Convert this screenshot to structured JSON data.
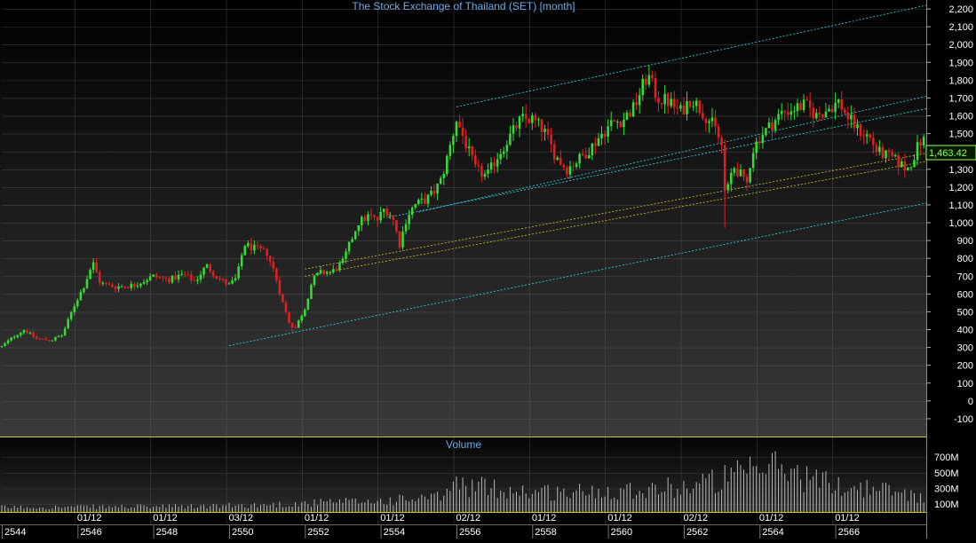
{
  "chart_data": {
    "type": "candlestick",
    "title": "The Stock Exchange of Thailand (SET) [month]",
    "last_price_label": "1,463.42",
    "colors": {
      "background_top": "#000000",
      "background_bottom": "#3a3a3a",
      "up": "#33dd33",
      "down": "#e02020",
      "channel_outer": "#30c8d8",
      "channel_inner": "#c8b020",
      "title": "#6fa8e8",
      "axis_text": "#ffffff",
      "price_tag": "#90ff60",
      "grid": "#6a6a6a",
      "volume_bars": "#b8b8b8"
    },
    "price_axis": {
      "ticks": [
        "2,200",
        "2,100",
        "2,000",
        "1,900",
        "1,800",
        "1,700",
        "1,600",
        "1,500",
        "1,400",
        "1,300",
        "1,200",
        "1,100",
        "1,000",
        "900",
        "800",
        "700",
        "600",
        "500",
        "400",
        "300",
        "200",
        "100",
        "0",
        "-100"
      ],
      "ylim": [
        -200,
        2250
      ]
    },
    "volume_panel": {
      "title": "Volume",
      "ticks": [
        "700M",
        "500M",
        "300M",
        "100M"
      ],
      "ylim": [
        0,
        860
      ]
    },
    "date_axis": {
      "upper_labels": [
        {
          "year": 2545.92,
          "text": "01/12"
        },
        {
          "year": 2547.92,
          "text": "01/12"
        },
        {
          "year": 2549.92,
          "text": "03/12"
        },
        {
          "year": 2551.92,
          "text": "01/12"
        },
        {
          "year": 2553.92,
          "text": "01/12"
        },
        {
          "year": 2555.92,
          "text": "02/12"
        },
        {
          "year": 2557.92,
          "text": "01/12"
        },
        {
          "year": 2559.92,
          "text": "01/12"
        },
        {
          "year": 2561.92,
          "text": "02/12"
        },
        {
          "year": 2563.92,
          "text": "01/12"
        },
        {
          "year": 2565.92,
          "text": "01/12"
        }
      ],
      "lower_labels": [
        "2544",
        "2546",
        "2548",
        "2550",
        "2552",
        "2554",
        "2556",
        "2558",
        "2560",
        "2562",
        "2564",
        "2566"
      ],
      "xlim": [
        2544.0,
        2568.4
      ]
    },
    "price_keypoints": [
      [
        2544.0,
        305
      ],
      [
        2544.3,
        360
      ],
      [
        2544.6,
        400
      ],
      [
        2544.9,
        350
      ],
      [
        2545.3,
        340
      ],
      [
        2545.6,
        370
      ],
      [
        2545.9,
        530
      ],
      [
        2546.2,
        660
      ],
      [
        2546.4,
        780
      ],
      [
        2546.6,
        660
      ],
      [
        2547.0,
        640
      ],
      [
        2547.5,
        650
      ],
      [
        2548.0,
        700
      ],
      [
        2548.4,
        680
      ],
      [
        2548.8,
        710
      ],
      [
        2549.1,
        670
      ],
      [
        2549.4,
        760
      ],
      [
        2549.7,
        690
      ],
      [
        2550.0,
        650
      ],
      [
        2550.2,
        690
      ],
      [
        2550.4,
        880
      ],
      [
        2550.6,
        860
      ],
      [
        2551.0,
        830
      ],
      [
        2551.2,
        720
      ],
      [
        2551.4,
        560
      ],
      [
        2551.6,
        430
      ],
      [
        2551.75,
        410
      ],
      [
        2552.0,
        520
      ],
      [
        2552.2,
        680
      ],
      [
        2552.4,
        720
      ],
      [
        2552.7,
        720
      ],
      [
        2553.0,
        780
      ],
      [
        2553.4,
        1000
      ],
      [
        2553.7,
        1040
      ],
      [
        2553.9,
        1010
      ],
      [
        2554.1,
        1080
      ],
      [
        2554.3,
        1040
      ],
      [
        2554.5,
        880
      ],
      [
        2554.7,
        1040
      ],
      [
        2554.9,
        1100
      ],
      [
        2555.2,
        1130
      ],
      [
        2555.4,
        1170
      ],
      [
        2555.6,
        1240
      ],
      [
        2555.8,
        1400
      ],
      [
        2556.0,
        1580
      ],
      [
        2556.2,
        1470
      ],
      [
        2556.5,
        1300
      ],
      [
        2556.8,
        1260
      ],
      [
        2557.1,
        1380
      ],
      [
        2557.4,
        1480
      ],
      [
        2557.7,
        1580
      ],
      [
        2558.0,
        1580
      ],
      [
        2558.3,
        1520
      ],
      [
        2558.6,
        1380
      ],
      [
        2558.9,
        1300
      ],
      [
        2559.2,
        1350
      ],
      [
        2559.5,
        1410
      ],
      [
        2559.8,
        1490
      ],
      [
        2560.1,
        1560
      ],
      [
        2560.4,
        1580
      ],
      [
        2560.7,
        1650
      ],
      [
        2560.9,
        1760
      ],
      [
        2561.05,
        1830
      ],
      [
        2561.3,
        1700
      ],
      [
        2561.6,
        1680
      ],
      [
        2561.9,
        1620
      ],
      [
        2562.2,
        1700
      ],
      [
        2562.5,
        1620
      ],
      [
        2562.8,
        1540
      ],
      [
        2563.0,
        1430
      ],
      [
        2563.1,
        1130
      ],
      [
        2563.3,
        1320
      ],
      [
        2563.5,
        1270
      ],
      [
        2563.65,
        1200
      ],
      [
        2563.8,
        1400
      ],
      [
        2564.0,
        1480
      ],
      [
        2564.3,
        1550
      ],
      [
        2564.6,
        1620
      ],
      [
        2564.9,
        1640
      ],
      [
        2565.2,
        1660
      ],
      [
        2565.5,
        1600
      ],
      [
        2565.8,
        1640
      ],
      [
        2566.1,
        1680
      ],
      [
        2566.3,
        1600
      ],
      [
        2566.6,
        1520
      ],
      [
        2566.9,
        1480
      ],
      [
        2567.1,
        1400
      ],
      [
        2567.3,
        1380
      ],
      [
        2567.5,
        1360
      ],
      [
        2567.7,
        1330
      ],
      [
        2567.9,
        1300
      ],
      [
        2568.05,
        1360
      ],
      [
        2568.2,
        1440
      ],
      [
        2568.3,
        1463
      ]
    ],
    "spikes": [
      {
        "year": 2563.1,
        "low": 970
      },
      {
        "year": 2554.55,
        "low": 850
      },
      {
        "year": 2551.65,
        "low": 385
      },
      {
        "year": 2563.7,
        "low": 1180
      }
    ],
    "volume_keypoints": [
      [
        2544.0,
        60
      ],
      [
        2549.0,
        70
      ],
      [
        2551.0,
        90
      ],
      [
        2552.5,
        120
      ],
      [
        2554.0,
        140
      ],
      [
        2555.5,
        180
      ],
      [
        2556.0,
        350
      ],
      [
        2557.0,
        300
      ],
      [
        2558.0,
        260
      ],
      [
        2559.0,
        250
      ],
      [
        2560.0,
        280
      ],
      [
        2561.0,
        300
      ],
      [
        2562.0,
        320
      ],
      [
        2563.0,
        420
      ],
      [
        2564.0,
        520
      ],
      [
        2564.5,
        600
      ],
      [
        2565.0,
        480
      ],
      [
        2566.0,
        340
      ],
      [
        2567.0,
        300
      ],
      [
        2568.3,
        200
      ]
    ],
    "channels": [
      {
        "kind": "outer",
        "x1": 2556.0,
        "y1": 1650,
        "x2": 2568.4,
        "y2": 2220
      },
      {
        "kind": "outer",
        "x1": 2555.0,
        "y1": 1060,
        "x2": 2568.4,
        "y2": 1710
      },
      {
        "kind": "outer",
        "x1": 2554.2,
        "y1": 1030,
        "x2": 2568.4,
        "y2": 1640
      },
      {
        "kind": "outer",
        "x1": 2550.0,
        "y1": 310,
        "x2": 2568.4,
        "y2": 1110
      },
      {
        "kind": "inner",
        "x1": 2552.0,
        "y1": 740,
        "x2": 2568.4,
        "y2": 1390
      },
      {
        "kind": "inner",
        "x1": 2552.0,
        "y1": 700,
        "x2": 2568.4,
        "y2": 1345
      }
    ]
  }
}
